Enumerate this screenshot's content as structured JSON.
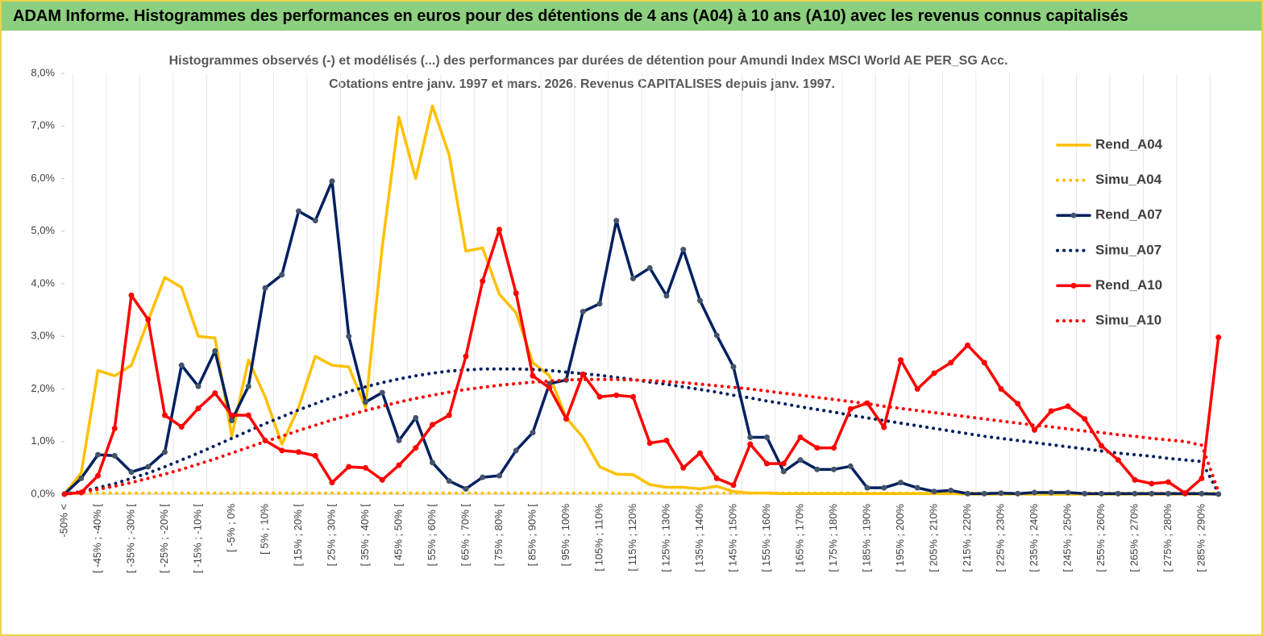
{
  "header": {
    "title": "ADAM Informe. Histogrammes des performances en euros pour des détentions de 4 ans (A04) à 10 ans (A10) avec les revenus connus capitalisés"
  },
  "chart_data": {
    "type": "line",
    "title": [
      "Histogrammes observés (-) et modélisés (...) des performances par durées de détention pour Amundi Index MSCI World AE PER_SG Acc.",
      "Cotations entre janv. 1997 et mars. 2026. Revenus CAPITALISES depuis janv. 1997."
    ],
    "categories": [
      "-50% <",
      null,
      "[ -45% ; -40% [",
      null,
      "[ -35% ; -30% [",
      null,
      "[ -25% ; -20% [",
      null,
      "[ -15% ; -10% [",
      null,
      "[ -5% ; 0%",
      null,
      "[ 5% ; 10%",
      null,
      "[ 15% ; 20% [",
      null,
      "[ 25% ; 30% [",
      null,
      "[ 35% ; 40% [",
      null,
      "[ 45% ; 50% [",
      null,
      "[ 55% ; 60% [",
      null,
      "[ 65% ; 70% [",
      null,
      "[ 75% ; 80% [",
      null,
      "[ 85% ; 90% [",
      null,
      "[ 95% ; 100%",
      null,
      "[ 105% ; 110%",
      null,
      "[ 115% ; 120%",
      null,
      "[ 125% ; 130%",
      null,
      "[ 135% ; 140%",
      null,
      "[ 145% ; 150%",
      null,
      "[ 155% ; 160%",
      null,
      "[ 165% ; 170%",
      null,
      "[ 175% ; 180%",
      null,
      "[ 185% ; 190%",
      null,
      "[ 195% ; 200%",
      null,
      "[ 205% ; 210%",
      null,
      "[ 215% ; 220%",
      null,
      "[ 225% ; 230%",
      null,
      "[ 235% ; 240%",
      null,
      "[ 245% ; 250%",
      null,
      "[ 255% ; 260%",
      null,
      "[ 265% ; 270%",
      null,
      "[ 275% ; 280%",
      null,
      "[ 285% ; 290%",
      null
    ],
    "ylim": [
      0,
      8
    ],
    "yticks": [
      {
        "value": 0,
        "label": "0,0%"
      },
      {
        "value": 1,
        "label": "1,0%"
      },
      {
        "value": 2,
        "label": "2,0%"
      },
      {
        "value": 3,
        "label": "3,0%"
      },
      {
        "value": 4,
        "label": "4,0%"
      },
      {
        "value": 5,
        "label": "5,0%"
      },
      {
        "value": 6,
        "label": "6,0%"
      },
      {
        "value": 7,
        "label": "7,0%"
      },
      {
        "value": 8,
        "label": "8,0%"
      }
    ],
    "series": [
      {
        "name": "Rend_A04",
        "color": "#ffc000",
        "style": "solid",
        "markers": false,
        "values": [
          0,
          0.4,
          2.35,
          2.25,
          2.45,
          3.3,
          4.12,
          3.93,
          3.0,
          2.97,
          1.1,
          2.55,
          1.85,
          0.95,
          1.65,
          2.62,
          2.45,
          2.42,
          1.65,
          4.7,
          7.17,
          6.0,
          7.38,
          6.45,
          4.62,
          4.68,
          3.8,
          3.45,
          2.5,
          2.25,
          1.45,
          1.08,
          0.52,
          0.38,
          0.37,
          0.18,
          0.13,
          0.13,
          0.1,
          0.15,
          0.05,
          0.02,
          0.02,
          0.01,
          0.01,
          0.01,
          0.01,
          0.01,
          0.01,
          0.01,
          0.01,
          0.01,
          0.01,
          0.01,
          0,
          0,
          0,
          0,
          0,
          0,
          0,
          0,
          0,
          0,
          0,
          0,
          0,
          0,
          0,
          0
        ]
      },
      {
        "name": "Simu_A04",
        "color": "#ffc000",
        "style": "dotted",
        "markers": false,
        "values": [
          0,
          0.02,
          0.02,
          0.02,
          0.02,
          0.02,
          0.02,
          0.02,
          0.02,
          0.02,
          0.02,
          0.02,
          0.02,
          0.02,
          0.02,
          0.02,
          0.02,
          0.02,
          0.02,
          0.02,
          0.02,
          0.02,
          0.02,
          0.02,
          0.02,
          0.02,
          0.02,
          0.02,
          0.02,
          0.02,
          0.02,
          0.02,
          0.02,
          0.02,
          0.02,
          0.02,
          0.02,
          0.02,
          0.02,
          0.02,
          0.02,
          0.02,
          0.02,
          0.02,
          0.02,
          0.02,
          0.02,
          0.02,
          0.02,
          0.02,
          0.02,
          0.02,
          0.02,
          0.02,
          0.02,
          0.02,
          0.02,
          0.02,
          0.02,
          0.02,
          0.02,
          0.02,
          0.02,
          0.02,
          0.02,
          0.02,
          0.02,
          0.02,
          0.02,
          0.02
        ]
      },
      {
        "name": "Rend_A07",
        "color": "#002060",
        "style": "solid",
        "markers": true,
        "values": [
          0,
          0.3,
          0.75,
          0.73,
          0.42,
          0.52,
          0.8,
          2.45,
          2.05,
          2.72,
          1.4,
          2.05,
          3.92,
          4.17,
          5.38,
          5.2,
          5.95,
          3.0,
          1.75,
          1.93,
          1.02,
          1.45,
          0.6,
          0.25,
          0.1,
          0.32,
          0.35,
          0.83,
          1.17,
          2.1,
          2.17,
          3.47,
          3.62,
          5.2,
          4.1,
          4.3,
          3.77,
          4.65,
          3.68,
          3.02,
          2.42,
          1.08,
          1.08,
          0.43,
          0.65,
          0.47,
          0.47,
          0.53,
          0.12,
          0.12,
          0.22,
          0.12,
          0.05,
          0.07,
          0.01,
          0.01,
          0.02,
          0.01,
          0.03,
          0.03,
          0.03,
          0.01,
          0.01,
          0.01,
          0.01,
          0.01,
          0.01,
          0.01,
          0.01,
          0
        ]
      },
      {
        "name": "Simu_A07",
        "color": "#002060",
        "style": "dotted",
        "markers": false,
        "values": [
          0,
          0.05,
          0.12,
          0.2,
          0.3,
          0.4,
          0.52,
          0.65,
          0.78,
          0.92,
          1.06,
          1.2,
          1.34,
          1.47,
          1.6,
          1.72,
          1.84,
          1.95,
          2.04,
          2.12,
          2.19,
          2.25,
          2.3,
          2.34,
          2.36,
          2.38,
          2.38,
          2.38,
          2.37,
          2.35,
          2.32,
          2.29,
          2.26,
          2.22,
          2.18,
          2.13,
          2.09,
          2.04,
          1.99,
          1.94,
          1.88,
          1.83,
          1.77,
          1.72,
          1.66,
          1.61,
          1.56,
          1.5,
          1.45,
          1.4,
          1.35,
          1.3,
          1.25,
          1.2,
          1.15,
          1.1,
          1.06,
          1.02,
          0.98,
          0.94,
          0.9,
          0.86,
          0.82,
          0.78,
          0.75,
          0.72,
          0.68,
          0.65,
          0.62,
          0.02
        ]
      },
      {
        "name": "Rend_A10",
        "color": "#ff0000",
        "style": "solid",
        "markers": true,
        "values": [
          0,
          0.03,
          0.35,
          1.25,
          3.78,
          3.32,
          1.5,
          1.28,
          1.63,
          1.92,
          1.5,
          1.5,
          1.02,
          0.83,
          0.8,
          0.73,
          0.22,
          0.52,
          0.5,
          0.27,
          0.55,
          0.88,
          1.32,
          1.5,
          2.62,
          4.05,
          5.03,
          3.82,
          2.25,
          2.02,
          1.43,
          2.28,
          1.85,
          1.88,
          1.85,
          0.97,
          1.02,
          0.5,
          0.78,
          0.3,
          0.17,
          0.95,
          0.58,
          0.58,
          1.08,
          0.88,
          0.88,
          1.62,
          1.73,
          1.27,
          2.55,
          2.0,
          2.3,
          2.5,
          2.83,
          2.5,
          2.0,
          1.72,
          1.22,
          1.58,
          1.67,
          1.43,
          0.92,
          0.65,
          0.27,
          0.2,
          0.23,
          0.02,
          0.3,
          2.98
        ]
      },
      {
        "name": "Simu_A10",
        "color": "#ff0000",
        "style": "dotted",
        "markers": false,
        "values": [
          0,
          0.04,
          0.09,
          0.15,
          0.22,
          0.3,
          0.38,
          0.47,
          0.57,
          0.67,
          0.78,
          0.89,
          1.0,
          1.1,
          1.21,
          1.31,
          1.41,
          1.5,
          1.59,
          1.67,
          1.75,
          1.82,
          1.88,
          1.94,
          1.99,
          2.03,
          2.07,
          2.1,
          2.13,
          2.15,
          2.17,
          2.18,
          2.18,
          2.18,
          2.17,
          2.16,
          2.14,
          2.12,
          2.09,
          2.06,
          2.03,
          2.0,
          1.96,
          1.92,
          1.88,
          1.84,
          1.8,
          1.76,
          1.72,
          1.67,
          1.63,
          1.59,
          1.55,
          1.51,
          1.47,
          1.43,
          1.39,
          1.35,
          1.31,
          1.28,
          1.24,
          1.2,
          1.17,
          1.13,
          1.1,
          1.06,
          1.03,
          1.0,
          0.93,
          0.05
        ]
      }
    ],
    "legend": "right"
  }
}
